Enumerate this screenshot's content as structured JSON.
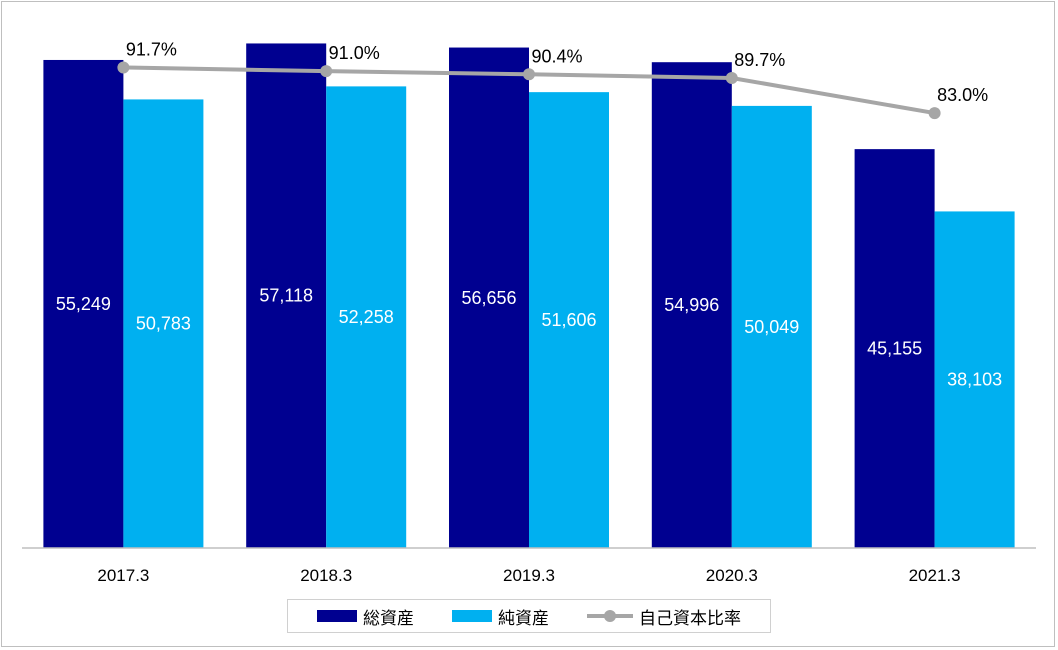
{
  "chart_data": {
    "type": "bar",
    "categories": [
      "2017.3",
      "2018.3",
      "2019.3",
      "2020.3",
      "2021.3"
    ],
    "series": [
      {
        "name": "総資産",
        "color": "#000090",
        "values": [
          55249,
          57118,
          56656,
          54996,
          45155
        ],
        "labels": [
          "55,249",
          "57,118",
          "56,656",
          "54,996",
          "45,155"
        ]
      },
      {
        "name": "純資産",
        "color": "#00b0f0",
        "values": [
          50783,
          52258,
          51606,
          50049,
          38103
        ],
        "labels": [
          "50,783",
          "52,258",
          "51,606",
          "50,049",
          "38,103"
        ]
      }
    ],
    "line_series": {
      "name": "自己資本比率",
      "color": "#a6a6a6",
      "values": [
        91.7,
        91.0,
        90.4,
        89.7,
        83.0
      ],
      "labels": [
        "91.7%",
        "91.0%",
        "90.4%",
        "89.7%",
        "83.0%"
      ],
      "ylim": [
        0,
        100
      ]
    },
    "ylim": [
      0,
      60000
    ],
    "legend_position": "bottom",
    "grid": false
  }
}
